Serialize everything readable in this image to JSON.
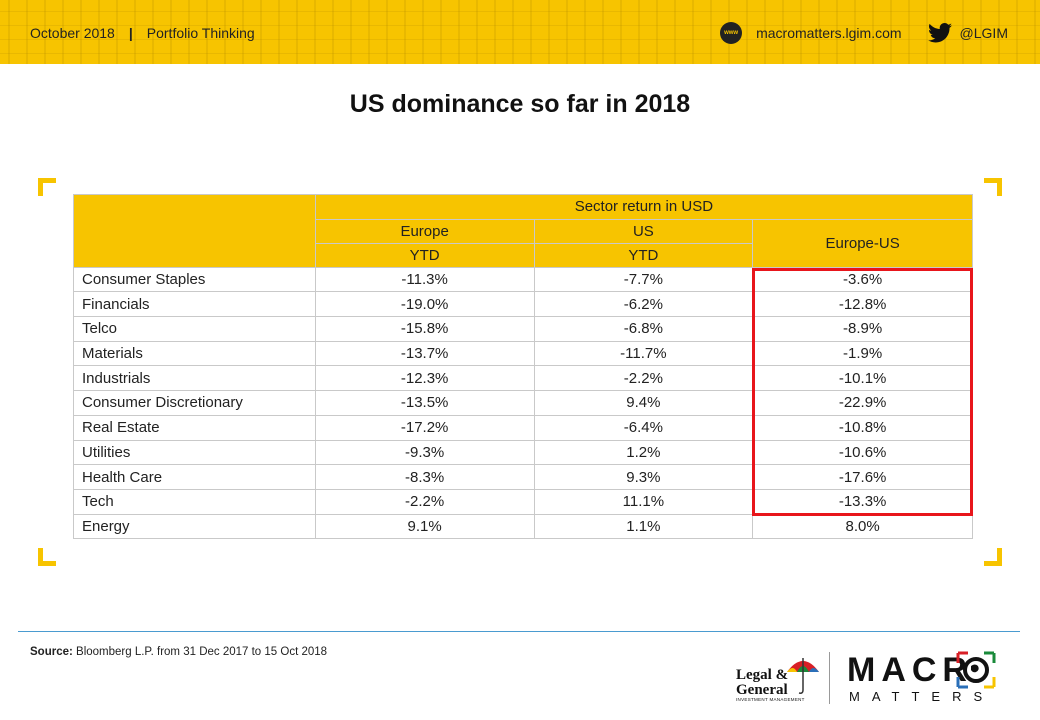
{
  "header": {
    "date": "October 2018",
    "separator": "|",
    "series": "Portfolio Thinking",
    "www_icon_label": "www",
    "website": "macromatters.lgim.com",
    "twitter_handle": "@LGIM",
    "icons": [
      "www-icon",
      "twitter-icon"
    ],
    "accent_color": "#f7c400"
  },
  "title": "US dominance so far in 2018",
  "table": {
    "group_header": "Sector return in USD",
    "columns": [
      {
        "line1": "Europe",
        "line2": "YTD"
      },
      {
        "line1": "US",
        "line2": "YTD"
      },
      {
        "line1": "Europe-US",
        "line2": ""
      }
    ],
    "rows": [
      {
        "sector": "Consumer Staples",
        "europe": "-11.3%",
        "us": "-7.7%",
        "diff": "-3.6%"
      },
      {
        "sector": "Financials",
        "europe": "-19.0%",
        "us": "-6.2%",
        "diff": "-12.8%"
      },
      {
        "sector": "Telco",
        "europe": "-15.8%",
        "us": "-6.8%",
        "diff": "-8.9%"
      },
      {
        "sector": "Materials",
        "europe": "-13.7%",
        "us": "-11.7%",
        "diff": "-1.9%"
      },
      {
        "sector": "Industrials",
        "europe": "-12.3%",
        "us": "-2.2%",
        "diff": "-10.1%"
      },
      {
        "sector": "Consumer Discretionary",
        "europe": "-13.5%",
        "us": "9.4%",
        "diff": "-22.9%"
      },
      {
        "sector": "Real Estate",
        "europe": "-17.2%",
        "us": "-6.4%",
        "diff": "-10.8%"
      },
      {
        "sector": "Utilities",
        "europe": "-9.3%",
        "us": "1.2%",
        "diff": "-10.6%"
      },
      {
        "sector": "Health Care",
        "europe": "-8.3%",
        "us": "9.3%",
        "diff": "-17.6%"
      },
      {
        "sector": "Tech",
        "europe": "-2.2%",
        "us": "11.1%",
        "diff": "-13.3%"
      },
      {
        "sector": "Energy",
        "europe": "9.1%",
        "us": "1.1%",
        "diff": "8.0%"
      }
    ],
    "highlight_color": "#e8151b"
  },
  "source": {
    "label": "Source:",
    "text": "Bloomberg L.P. from 31 Dec 2017 to 15 Oct 2018"
  },
  "logos": {
    "lg_line1": "Legal &",
    "lg_line2": "General",
    "lg_sub": "INVESTMENT MANAGEMENT",
    "mm_word1": "MACR",
    "mm_word2": "MATTERS"
  }
}
